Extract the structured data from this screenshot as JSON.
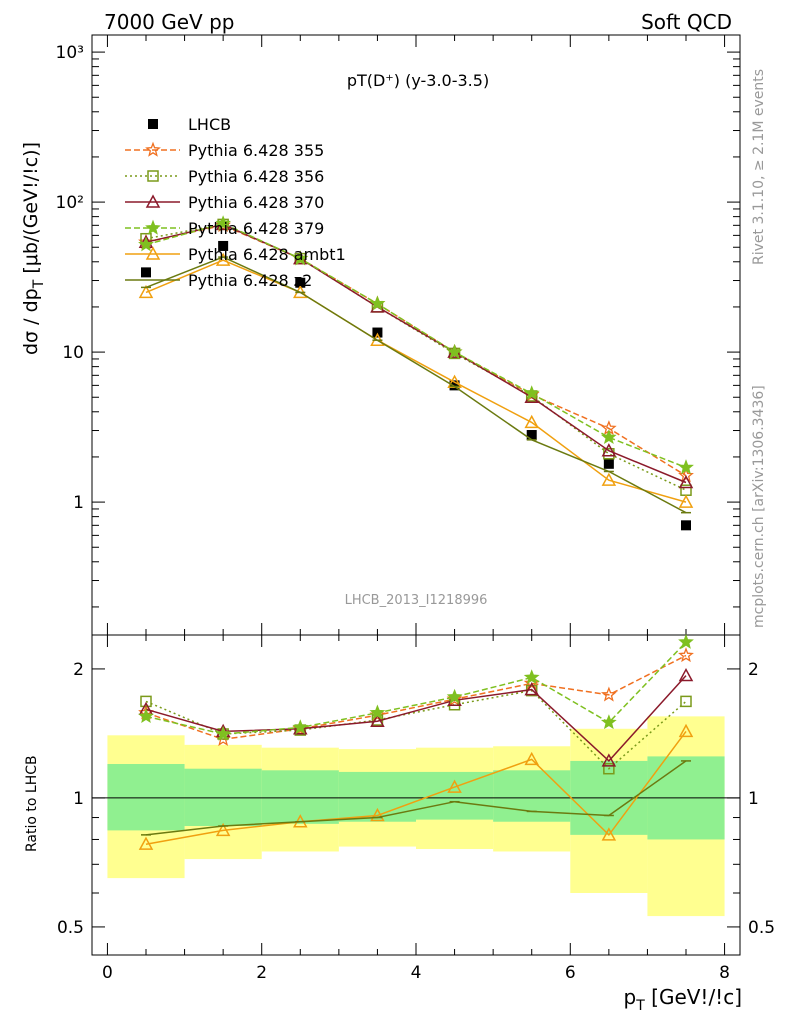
{
  "header": {
    "energy": "7000 GeV pp",
    "process": "Soft QCD",
    "rivet_label": "Rivet 3.1.10, ≥ 2.1M events",
    "mcplots_label": "mcplots.cern.ch [arXiv:1306.3436]",
    "analysis_id": "LHCB_2013_I1218996",
    "plot_title": "pT(D⁺) (y-3.0-3.5)"
  },
  "chart_data": [
    {
      "panel": "main",
      "type": "scatter",
      "ylabel": "dσ / dp_T [μb/(GeV!/!c)]",
      "yscale": "log",
      "xlim": [
        -0.2,
        8.2
      ],
      "ylim": [
        0.13,
        1300
      ],
      "ytick_labels": [
        "1",
        "10",
        "10²",
        "10³"
      ],
      "legend_position": "top-left",
      "x": [
        0.5,
        1.5,
        2.5,
        3.5,
        4.5,
        5.5,
        6.5,
        7.5
      ],
      "series": [
        {
          "name": "LHCB",
          "color": "#000000",
          "marker": "square-filled",
          "line": "none",
          "values": [
            34,
            51,
            29,
            13.5,
            6.0,
            2.8,
            1.8,
            0.7
          ]
        },
        {
          "name": "Pythia 6.428 355",
          "color": "#f07020",
          "marker": "star-open",
          "line": "dashed",
          "values": [
            54,
            70,
            42,
            21,
            10,
            5.2,
            3.1,
            1.5
          ]
        },
        {
          "name": "Pythia 6.428 356",
          "color": "#7a9a1a",
          "marker": "square-open",
          "line": "dotted",
          "values": [
            57,
            71,
            42,
            20,
            9.8,
            5.1,
            2.1,
            1.2
          ]
        },
        {
          "name": "Pythia 6.428 370",
          "color": "#8b1a2b",
          "marker": "triangle-open",
          "line": "solid",
          "values": [
            54,
            71,
            42,
            20,
            10,
            5.0,
            2.2,
            1.35
          ]
        },
        {
          "name": "Pythia 6.428 379",
          "color": "#7fc020",
          "marker": "star-filled",
          "line": "dashed",
          "values": [
            52,
            72,
            42,
            21,
            10,
            5.3,
            2.7,
            1.7
          ]
        },
        {
          "name": "Pythia 6.428 ambt1",
          "color": "#f0a010",
          "marker": "triangle-open",
          "line": "solid",
          "values": [
            25,
            41,
            25,
            12,
            6.3,
            3.4,
            1.4,
            1.0
          ]
        },
        {
          "name": "Pythia 6.428 z2",
          "color": "#6b7a10",
          "marker": "none",
          "line": "solid",
          "values": [
            27,
            43,
            25,
            12,
            5.9,
            2.6,
            1.6,
            0.85
          ]
        }
      ]
    },
    {
      "panel": "ratio",
      "type": "line",
      "ylabel": "Ratio to LHCB",
      "xlabel": "p_T [GeV!/!c]",
      "ylim": [
        0.43,
        2.4
      ],
      "ytick_labels": [
        "0.5",
        "1",
        "2"
      ],
      "xtick_labels": [
        "0",
        "2",
        "4",
        "6",
        "8"
      ],
      "x": [
        0.5,
        1.5,
        2.5,
        3.5,
        4.5,
        5.5,
        6.5,
        7.5
      ],
      "bands": {
        "bins": [
          [
            0,
            1
          ],
          [
            1,
            2
          ],
          [
            2,
            3
          ],
          [
            3,
            4
          ],
          [
            4,
            5
          ],
          [
            5,
            6
          ],
          [
            6,
            7
          ],
          [
            7,
            8
          ]
        ],
        "stat": {
          "color": "#90f090",
          "low": [
            0.84,
            0.86,
            0.87,
            0.88,
            0.89,
            0.88,
            0.82,
            0.8
          ],
          "high": [
            1.2,
            1.17,
            1.16,
            1.15,
            1.15,
            1.16,
            1.22,
            1.25
          ]
        },
        "total": {
          "color": "#ffff90",
          "low": [
            0.65,
            0.72,
            0.75,
            0.77,
            0.76,
            0.75,
            0.6,
            0.53
          ],
          "high": [
            1.4,
            1.33,
            1.31,
            1.3,
            1.31,
            1.32,
            1.45,
            1.55
          ]
        }
      },
      "series": [
        {
          "name": "Pythia 6.428 355",
          "color": "#f07020",
          "values": [
            1.58,
            1.37,
            1.45,
            1.56,
            1.7,
            1.85,
            1.74,
            2.15
          ]
        },
        {
          "name": "Pythia 6.428 356",
          "color": "#7a9a1a",
          "values": [
            1.68,
            1.41,
            1.44,
            1.52,
            1.65,
            1.78,
            1.17,
            1.68
          ]
        },
        {
          "name": "Pythia 6.428 370",
          "color": "#8b1a2b",
          "values": [
            1.61,
            1.43,
            1.45,
            1.51,
            1.69,
            1.79,
            1.22,
            1.93
          ]
        },
        {
          "name": "Pythia 6.428 379",
          "color": "#7fc020",
          "values": [
            1.55,
            1.41,
            1.46,
            1.58,
            1.72,
            1.91,
            1.5,
            2.31
          ]
        },
        {
          "name": "Pythia 6.428 ambt1",
          "color": "#f0a010",
          "values": [
            0.78,
            0.84,
            0.88,
            0.91,
            1.06,
            1.23,
            0.82,
            1.43
          ]
        },
        {
          "name": "Pythia 6.428 z2",
          "color": "#6b7a10",
          "values": [
            0.82,
            0.86,
            0.88,
            0.9,
            0.98,
            0.93,
            0.91,
            1.22
          ]
        }
      ]
    }
  ]
}
